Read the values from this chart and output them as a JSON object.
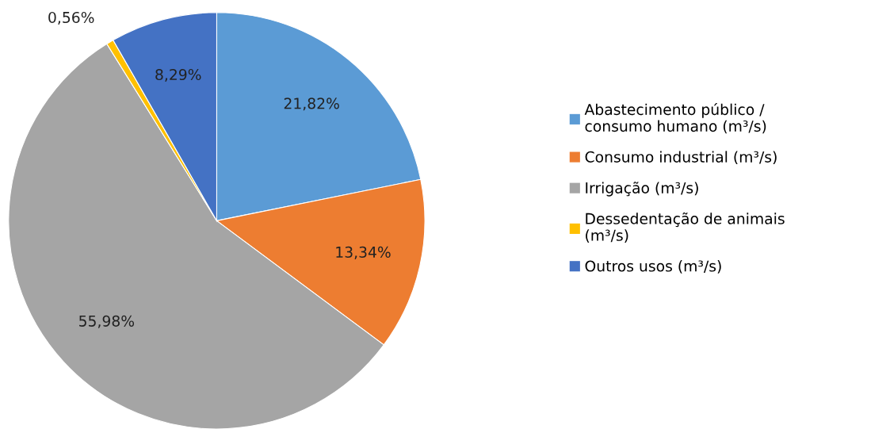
{
  "chart_data": {
    "type": "pie",
    "categories": [
      "Abastecimento público /\nconsumo humano (m³/s)",
      "Consumo industrial (m³/s)",
      "Irrigação (m³/s)",
      "Dessedentação de animais\n(m³/s)",
      "Outros usos (m³/s)"
    ],
    "values": [
      21.82,
      13.34,
      55.98,
      0.56,
      8.29
    ],
    "value_labels": [
      "21,82%",
      "13,34%",
      "55,98%",
      "0,56%",
      "8,29%"
    ],
    "colors": [
      "#5b9bd5",
      "#ed7d31",
      "#a5a5a5",
      "#ffc000",
      "#4472c4"
    ],
    "legend": "right"
  }
}
